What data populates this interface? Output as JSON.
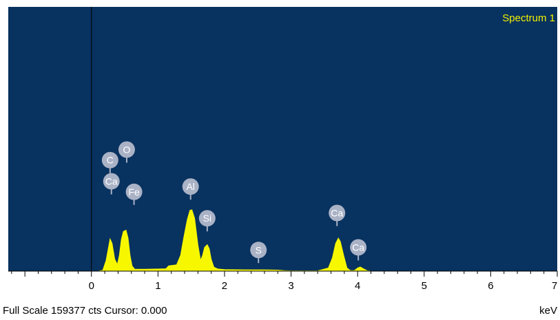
{
  "chart_data": {
    "type": "area",
    "title": "Spectrum 1",
    "xlabel": "keV",
    "xlim": [
      -1.25,
      7
    ],
    "x_ticks": [
      "0",
      "1",
      "2",
      "3",
      "4",
      "5",
      "6",
      "7"
    ],
    "colors": {
      "background": "#08325f",
      "fill": "#f7f700",
      "title": "#f2f200",
      "marker": "#aab2c6",
      "marker_text": "#ffffff",
      "cursor": "#000000"
    },
    "series": [
      {
        "x": [
          -0.1,
          0.1,
          0.17,
          0.22,
          0.26,
          0.28,
          0.31,
          0.35,
          0.39,
          0.42,
          0.45,
          0.48,
          0.52,
          0.55,
          0.58,
          0.61,
          0.65,
          0.8,
          1.0,
          1.12,
          1.16,
          1.28,
          1.34,
          1.39,
          1.44,
          1.48,
          1.51,
          1.55,
          1.6,
          1.64,
          1.67,
          1.7,
          1.74,
          1.77,
          1.8,
          1.84,
          1.9,
          2.0,
          2.3,
          2.6,
          2.8,
          2.9,
          3.0,
          3.4,
          3.56,
          3.62,
          3.67,
          3.71,
          3.74,
          3.79,
          3.84,
          3.89,
          3.95,
          4.0,
          4.04,
          4.08,
          4.14,
          4.2,
          4.5,
          7.0
        ],
        "y": [
          0,
          0,
          0.3,
          4,
          9.5,
          12.2,
          10.5,
          4.5,
          2.5,
          6,
          12,
          15,
          15.5,
          12.5,
          6,
          2,
          0.7,
          0.7,
          0.8,
          0.9,
          2,
          2.4,
          6,
          13,
          19.5,
          23,
          23.2,
          20,
          10,
          4,
          6,
          9,
          10,
          8.5,
          4.5,
          1.5,
          0.8,
          0.6,
          0.5,
          0.5,
          0.4,
          0.2,
          0.1,
          0.1,
          1.2,
          5,
          10.5,
          12.5,
          11.2,
          6,
          1.2,
          0.2,
          0.2,
          1.2,
          1.6,
          1.0,
          0.2,
          0,
          0,
          0
        ]
      }
    ],
    "peaks": [
      {
        "label": "C",
        "energy": 0.28,
        "level": 42
      },
      {
        "label": "O",
        "energy": 0.53,
        "level": 46
      },
      {
        "label": "Ca",
        "energy": 0.3,
        "level": 34
      },
      {
        "label": "Fe",
        "energy": 0.64,
        "level": 30
      },
      {
        "label": "Al",
        "energy": 1.49,
        "level": 32
      },
      {
        "label": "Si",
        "energy": 1.74,
        "level": 20
      },
      {
        "label": "S",
        "energy": 2.51,
        "level": 8
      },
      {
        "label": "Ca",
        "energy": 3.69,
        "level": 22
      },
      {
        "label": "Ca",
        "energy": 4.01,
        "level": 9
      }
    ],
    "cursor": 0.0,
    "status": "Full Scale 159377 cts Cursor: 0.000"
  }
}
